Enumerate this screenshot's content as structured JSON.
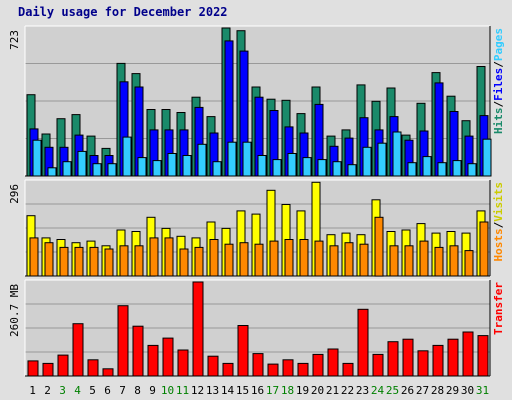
{
  "title": "Daily usage for December 2022",
  "colors": {
    "hits": "#1a8a6a",
    "files": "#0000ff",
    "pages": "#33ccff",
    "visits": "#ffff00",
    "hosts": "#ff8800",
    "transfer": "#ff0000",
    "weekday_label": "#000000",
    "weekend_label": "#008000"
  },
  "chart_data": [
    {
      "type": "bar",
      "panel": "hits-files-pages",
      "max_label": "723",
      "ylim": [
        0,
        723
      ],
      "right_label_parts": [
        "Hits",
        "/",
        "Files",
        "/",
        "Pages"
      ],
      "categories": [
        "1",
        "2",
        "3",
        "4",
        "5",
        "6",
        "7",
        "8",
        "9",
        "10",
        "11",
        "12",
        "13",
        "14",
        "15",
        "16",
        "17",
        "18",
        "19",
        "20",
        "21",
        "22",
        "23",
        "24",
        "25",
        "26",
        "27",
        "28",
        "29",
        "30",
        "31"
      ],
      "series": [
        {
          "name": "Hits",
          "values": [
            397,
            205,
            280,
            300,
            195,
            135,
            550,
            500,
            325,
            325,
            310,
            385,
            290,
            723,
            710,
            435,
            375,
            370,
            305,
            435,
            195,
            225,
            445,
            365,
            430,
            200,
            355,
            505,
            390,
            270,
            535
          ]
        },
        {
          "name": "Files",
          "values": [
            230,
            140,
            140,
            200,
            100,
            100,
            460,
            435,
            225,
            225,
            225,
            335,
            210,
            660,
            610,
            385,
            320,
            240,
            210,
            350,
            145,
            185,
            285,
            225,
            290,
            175,
            220,
            455,
            315,
            195,
            295
          ]
        },
        {
          "name": "Pages",
          "values": [
            175,
            40,
            70,
            120,
            60,
            60,
            190,
            90,
            75,
            110,
            100,
            155,
            70,
            165,
            165,
            100,
            80,
            110,
            90,
            80,
            70,
            55,
            140,
            160,
            215,
            65,
            95,
            65,
            75,
            60,
            180
          ]
        }
      ]
    },
    {
      "type": "bar",
      "panel": "visits-hosts",
      "max_label": "296",
      "ylim": [
        0,
        296
      ],
      "right_label_parts": [
        "Hosts",
        "/",
        "Visits"
      ],
      "categories": [
        "1",
        "2",
        "3",
        "4",
        "5",
        "6",
        "7",
        "8",
        "9",
        "10",
        "11",
        "12",
        "13",
        "14",
        "15",
        "16",
        "17",
        "18",
        "19",
        "20",
        "21",
        "22",
        "23",
        "24",
        "25",
        "26",
        "27",
        "28",
        "29",
        "30",
        "31"
      ],
      "series": [
        {
          "name": "Visits",
          "values": [
            190,
            120,
            115,
            105,
            110,
            95,
            145,
            140,
            185,
            150,
            125,
            120,
            170,
            150,
            205,
            195,
            270,
            225,
            205,
            295,
            130,
            135,
            130,
            240,
            140,
            145,
            165,
            135,
            140,
            135,
            205
          ]
        },
        {
          "name": "Hosts",
          "values": [
            120,
            105,
            90,
            90,
            90,
            85,
            95,
            95,
            120,
            120,
            85,
            90,
            115,
            100,
            105,
            100,
            110,
            115,
            115,
            110,
            95,
            105,
            100,
            185,
            95,
            95,
            110,
            90,
            95,
            80,
            170
          ]
        }
      ]
    },
    {
      "type": "bar",
      "panel": "transfer",
      "max_label": "260.7 MB",
      "ylim": [
        0,
        260.7
      ],
      "right_label_parts": [
        "Transfer"
      ],
      "categories": [
        "1",
        "2",
        "3",
        "4",
        "5",
        "6",
        "7",
        "8",
        "9",
        "10",
        "11",
        "12",
        "13",
        "14",
        "15",
        "16",
        "17",
        "18",
        "19",
        "20",
        "21",
        "22",
        "23",
        "24",
        "25",
        "26",
        "27",
        "28",
        "29",
        "30",
        "31"
      ],
      "series": [
        {
          "name": "Transfer",
          "values": [
            42,
            35,
            58,
            145,
            45,
            20,
            195,
            138,
            85,
            105,
            72,
            260.7,
            55,
            35,
            140,
            62,
            33,
            45,
            35,
            60,
            75,
            35,
            185,
            60,
            95,
            102,
            70,
            85,
            102,
            122,
            112
          ]
        }
      ]
    }
  ],
  "days": [
    {
      "label": "1",
      "weekend": false
    },
    {
      "label": "2",
      "weekend": false
    },
    {
      "label": "3",
      "weekend": true
    },
    {
      "label": "4",
      "weekend": true
    },
    {
      "label": "5",
      "weekend": false
    },
    {
      "label": "6",
      "weekend": false
    },
    {
      "label": "7",
      "weekend": false
    },
    {
      "label": "8",
      "weekend": false
    },
    {
      "label": "9",
      "weekend": false
    },
    {
      "label": "10",
      "weekend": true
    },
    {
      "label": "11",
      "weekend": true
    },
    {
      "label": "12",
      "weekend": false
    },
    {
      "label": "13",
      "weekend": false
    },
    {
      "label": "14",
      "weekend": false
    },
    {
      "label": "15",
      "weekend": false
    },
    {
      "label": "16",
      "weekend": false
    },
    {
      "label": "17",
      "weekend": true
    },
    {
      "label": "18",
      "weekend": true
    },
    {
      "label": "19",
      "weekend": false
    },
    {
      "label": "20",
      "weekend": false
    },
    {
      "label": "21",
      "weekend": false
    },
    {
      "label": "22",
      "weekend": false
    },
    {
      "label": "23",
      "weekend": false
    },
    {
      "label": "24",
      "weekend": true
    },
    {
      "label": "25",
      "weekend": true
    },
    {
      "label": "26",
      "weekend": false
    },
    {
      "label": "27",
      "weekend": false
    },
    {
      "label": "28",
      "weekend": false
    },
    {
      "label": "29",
      "weekend": false
    },
    {
      "label": "30",
      "weekend": false
    },
    {
      "label": "31",
      "weekend": true
    }
  ]
}
